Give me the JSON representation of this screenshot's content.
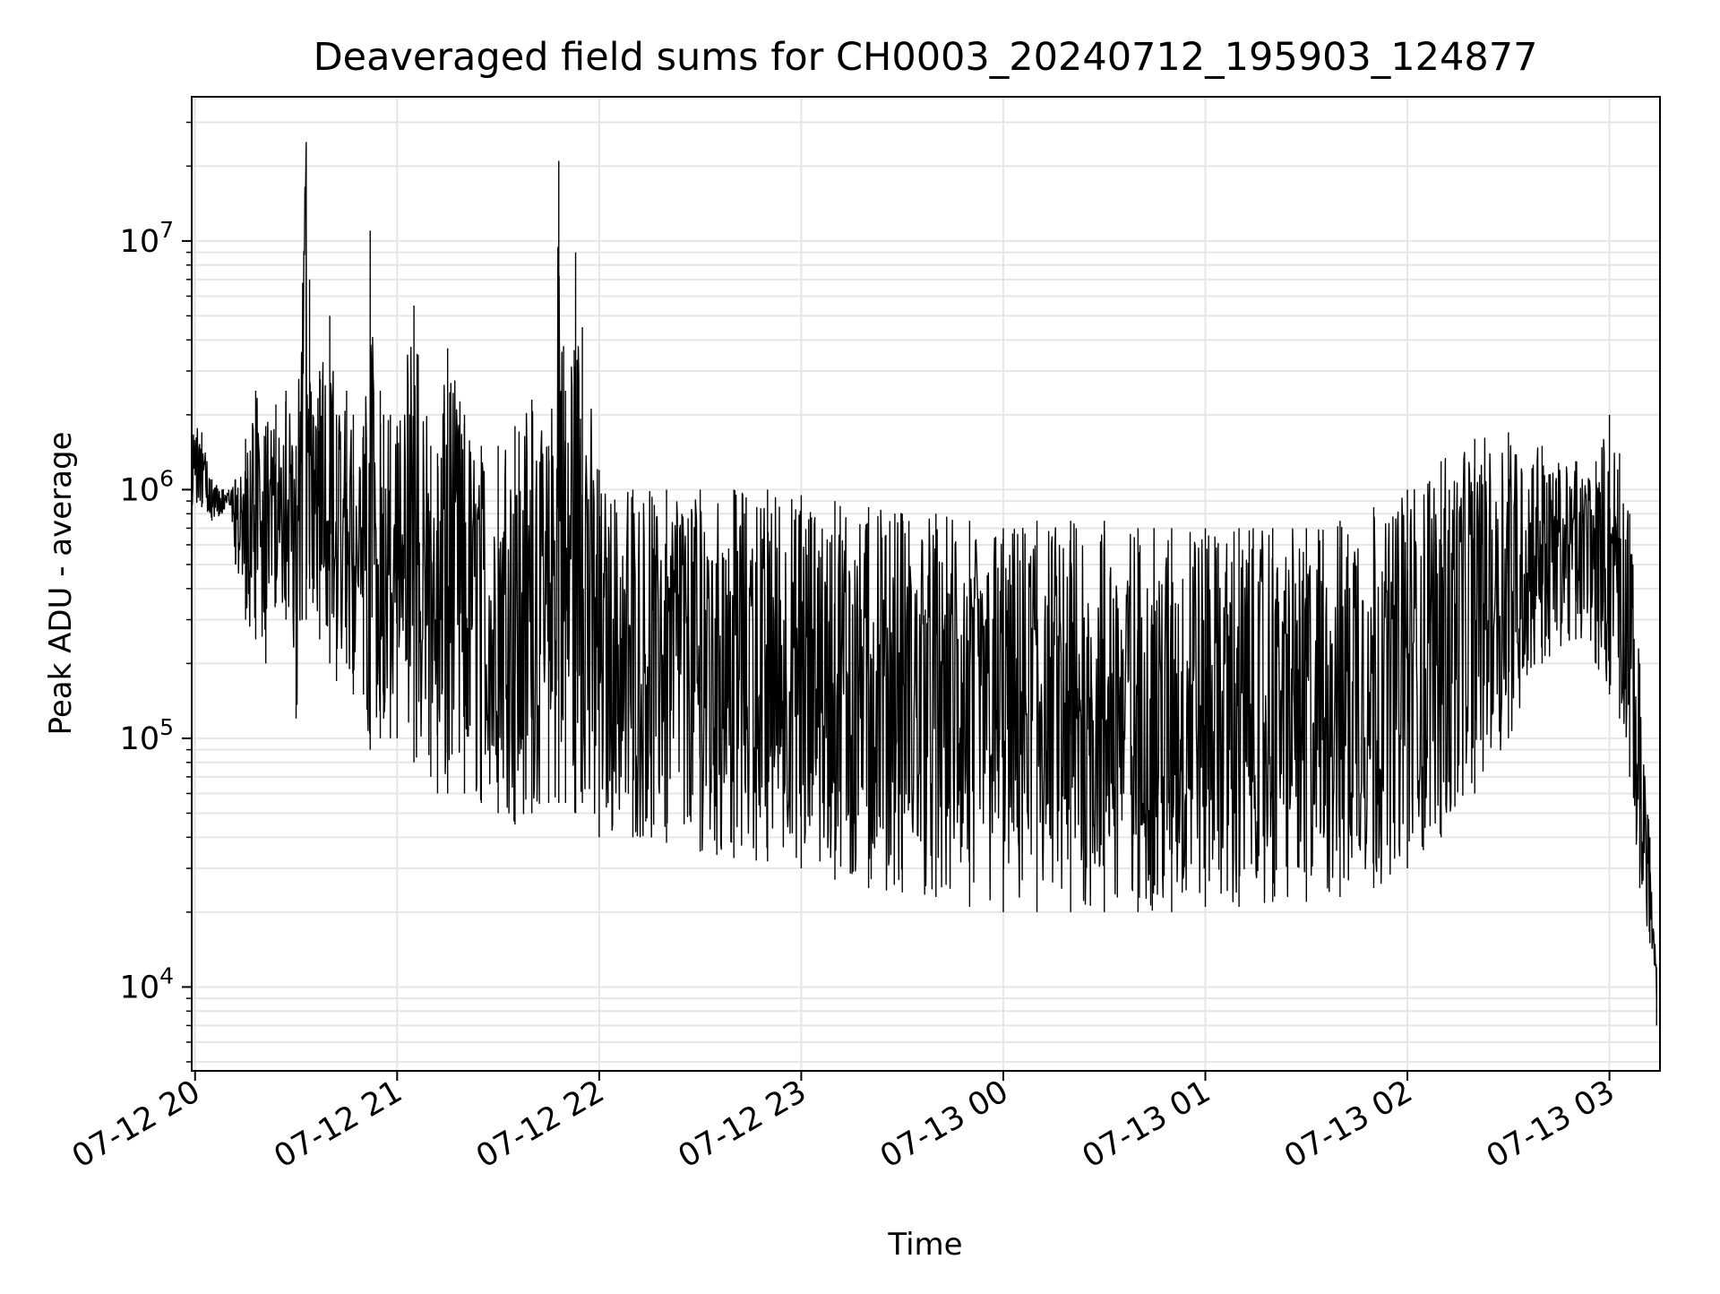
{
  "chart_data": {
    "type": "line",
    "title": "Deaveraged field sums for CH0003_20240712_195903_124877",
    "xlabel": "Time",
    "ylabel": "Peak ADU - average",
    "y_scale": "log",
    "ylim": [
      4600,
      38000000
    ],
    "xlim": [
      "2024-07-12 19:59",
      "2024-07-13 03:15"
    ],
    "grid": true,
    "legend": "none",
    "x_ticks": [
      "2024-07-12 20:00",
      "2024-07-12 21:00",
      "2024-07-12 22:00",
      "2024-07-12 23:00",
      "2024-07-13 00:00",
      "2024-07-13 01:00",
      "2024-07-13 02:00",
      "2024-07-13 03:00"
    ],
    "x_tick_labels": [
      "07-12 20",
      "07-12 21",
      "07-12 22",
      "07-12 23",
      "07-13 00",
      "07-13 01",
      "07-13 02",
      "07-13 03"
    ],
    "y_ticks": [
      {
        "value": 10000,
        "mantissa": "10",
        "exponent": "4"
      },
      {
        "value": 100000,
        "mantissa": "10",
        "exponent": "5"
      },
      {
        "value": 1000000,
        "mantissa": "10",
        "exponent": "6"
      },
      {
        "value": 10000000,
        "mantissa": "10",
        "exponent": "7"
      }
    ],
    "line_color": "#000000",
    "grid_color": "#e6e6e6",
    "series": [
      {
        "x": [
          "2024-07-12 19:59",
          "2024-07-12 20:02",
          "2024-07-12 20:05",
          "2024-07-12 20:08",
          "2024-07-12 20:10",
          "2024-07-12 20:12",
          "2024-07-12 20:15",
          "2024-07-12 20:18",
          "2024-07-12 20:21",
          "2024-07-12 20:24",
          "2024-07-12 20:27",
          "2024-07-12 20:30",
          "2024-07-12 20:33",
          "2024-07-12 20:34",
          "2024-07-12 20:35",
          "2024-07-12 20:37",
          "2024-07-12 20:40",
          "2024-07-12 20:42",
          "2024-07-12 20:45",
          "2024-07-12 20:47",
          "2024-07-12 20:50",
          "2024-07-12 20:52",
          "2024-07-12 20:55",
          "2024-07-12 20:56",
          "2024-07-12 20:58",
          "2024-07-12 21:00",
          "2024-07-12 21:05",
          "2024-07-12 21:10",
          "2024-07-12 21:12",
          "2024-07-12 21:15",
          "2024-07-12 21:20",
          "2024-07-12 21:25",
          "2024-07-12 21:30",
          "2024-07-12 21:35",
          "2024-07-12 21:40",
          "2024-07-12 21:45",
          "2024-07-12 21:48",
          "2024-07-12 21:50",
          "2024-07-12 21:53",
          "2024-07-12 21:55",
          "2024-07-12 22:00",
          "2024-07-12 22:10",
          "2024-07-12 22:20",
          "2024-07-12 22:30",
          "2024-07-12 22:40",
          "2024-07-12 22:50",
          "2024-07-12 23:00",
          "2024-07-12 23:10",
          "2024-07-12 23:20",
          "2024-07-12 23:30",
          "2024-07-12 23:40",
          "2024-07-12 23:50",
          "2024-07-13 00:00",
          "2024-07-13 00:10",
          "2024-07-13 00:20",
          "2024-07-13 00:30",
          "2024-07-13 00:40",
          "2024-07-13 00:50",
          "2024-07-13 01:00",
          "2024-07-13 01:10",
          "2024-07-13 01:20",
          "2024-07-13 01:30",
          "2024-07-13 01:40",
          "2024-07-13 01:50",
          "2024-07-13 02:00",
          "2024-07-13 02:10",
          "2024-07-13 02:20",
          "2024-07-13 02:30",
          "2024-07-13 02:40",
          "2024-07-13 02:50",
          "2024-07-13 02:56",
          "2024-07-13 03:00",
          "2024-07-13 03:03",
          "2024-07-13 03:06",
          "2024-07-13 03:09",
          "2024-07-13 03:12",
          "2024-07-13 03:14"
        ],
        "low": [
          800000,
          850000,
          750000,
          800000,
          900000,
          500000,
          300000,
          250000,
          200000,
          350000,
          300000,
          120000,
          300000,
          400000,
          350000,
          250000,
          200000,
          170000,
          200000,
          150000,
          150000,
          90000,
          100000,
          120000,
          100000,
          100000,
          80000,
          70000,
          60000,
          60000,
          60000,
          55000,
          50000,
          45000,
          50000,
          55000,
          55000,
          55000,
          50000,
          55000,
          40000,
          40000,
          38000,
          35000,
          33000,
          32000,
          30000,
          27000,
          25000,
          24000,
          23000,
          21000,
          20000,
          20000,
          20000,
          20000,
          20000,
          20000,
          21000,
          21000,
          22000,
          22000,
          23000,
          25000,
          30000,
          40000,
          60000,
          100000,
          200000,
          250000,
          200000,
          150000,
          120000,
          70000,
          25000,
          15000,
          7000
        ],
        "high": [
          1900000,
          1700000,
          1100000,
          1000000,
          1000000,
          1100000,
          1600000,
          2500000,
          1800000,
          2200000,
          2500000,
          1500000,
          25000000,
          7000000,
          2000000,
          3000000,
          5000000,
          2000000,
          2500000,
          2000000,
          1800000,
          11000000,
          2500000,
          2000000,
          2000000,
          1800000,
          5500000,
          1500000,
          1400000,
          3700000,
          2000000,
          1500000,
          1500000,
          1800000,
          2300000,
          1500000,
          21000000,
          2500000,
          9000000,
          4500000,
          1200000,
          1000000,
          1000000,
          1000000,
          1000000,
          1000000,
          950000,
          900000,
          850000,
          800000,
          800000,
          750000,
          700000,
          750000,
          750000,
          750000,
          700000,
          700000,
          700000,
          700000,
          700000,
          700000,
          750000,
          850000,
          1000000,
          1300000,
          1600000,
          1700000,
          1500000,
          1300000,
          1300000,
          2000000,
          1400000,
          800000,
          200000,
          40000,
          12000
        ]
      }
    ]
  }
}
